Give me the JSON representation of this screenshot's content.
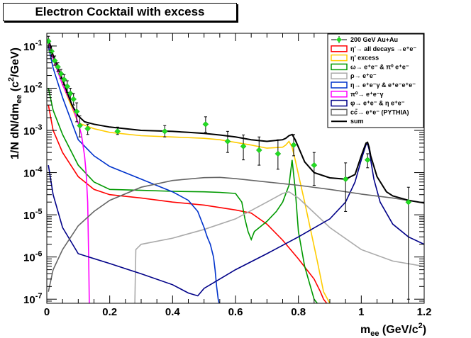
{
  "chart_data": {
    "type": "line",
    "title": "Electron Cocktail with excess",
    "xlabel": "m",
    "xlabel_sub": "ee",
    "xlabel_unit": " (GeV/c",
    "xlabel_sup": "2",
    "xlabel_close": ")",
    "ylabel": "1/N dN/dm",
    "ylabel_sub": "ee",
    "ylabel_unit": " (c",
    "ylabel_sup": "2",
    "ylabel_close": "/GeV)",
    "xlim": [
      0,
      1.2
    ],
    "ylim": [
      8e-08,
      0.2
    ],
    "yscale": "log",
    "xticks": [
      {
        "v": 0,
        "label": "0"
      },
      {
        "v": 0.2,
        "label": "0.2"
      },
      {
        "v": 0.4,
        "label": "0.4"
      },
      {
        "v": 0.6,
        "label": "0.6"
      },
      {
        "v": 0.8,
        "label": "0.8"
      },
      {
        "v": 1.0,
        "label": "1"
      },
      {
        "v": 1.2,
        "label": "1.2"
      }
    ],
    "yticks": [
      {
        "v": 1e-07,
        "base": "10",
        "exp": "-7"
      },
      {
        "v": 1e-06,
        "base": "10",
        "exp": "-6"
      },
      {
        "v": 1e-05,
        "base": "10",
        "exp": "-5"
      },
      {
        "v": 0.0001,
        "base": "10",
        "exp": "-4"
      },
      {
        "v": 0.001,
        "base": "10",
        "exp": "-3"
      },
      {
        "v": 0.01,
        "base": "10",
        "exp": "-2"
      },
      {
        "v": 0.1,
        "base": "10",
        "exp": "-1"
      }
    ],
    "legend_position": "top-right",
    "data_points": {
      "name": "200 GeV Au+Au",
      "color": "#22dd22",
      "points": [
        {
          "x": 0.005,
          "y": 0.13,
          "lo": 0.09,
          "hi": 0.17
        },
        {
          "x": 0.015,
          "y": 0.075,
          "lo": 0.055,
          "hi": 0.1
        },
        {
          "x": 0.025,
          "y": 0.045,
          "lo": 0.035,
          "hi": 0.058
        },
        {
          "x": 0.035,
          "y": 0.032,
          "lo": 0.025,
          "hi": 0.04
        },
        {
          "x": 0.045,
          "y": 0.022,
          "lo": 0.017,
          "hi": 0.028
        },
        {
          "x": 0.055,
          "y": 0.016,
          "lo": 0.012,
          "hi": 0.021
        },
        {
          "x": 0.065,
          "y": 0.011,
          "lo": 0.008,
          "hi": 0.015
        },
        {
          "x": 0.075,
          "y": 0.0075,
          "lo": 0.0055,
          "hi": 0.01
        },
        {
          "x": 0.085,
          "y": 0.0055,
          "lo": 0.004,
          "hi": 0.0075
        },
        {
          "x": 0.095,
          "y": 0.0028,
          "lo": 0.0016,
          "hi": 0.0045
        },
        {
          "x": 0.105,
          "y": 0.0013,
          "lo": 0.0007,
          "hi": 0.0022
        },
        {
          "x": 0.13,
          "y": 0.0011,
          "lo": 0.0008,
          "hi": 0.0014
        },
        {
          "x": 0.225,
          "y": 0.00095,
          "lo": 0.0008,
          "hi": 0.0012
        },
        {
          "x": 0.375,
          "y": 0.00095,
          "lo": 0.0007,
          "hi": 0.0013
        },
        {
          "x": 0.505,
          "y": 0.0014,
          "lo": 0.0009,
          "hi": 0.0021
        },
        {
          "x": 0.575,
          "y": 0.00055,
          "lo": 0.0003,
          "hi": 0.00095
        },
        {
          "x": 0.625,
          "y": 0.00042,
          "lo": 0.0002,
          "hi": 0.00078
        },
        {
          "x": 0.675,
          "y": 0.00034,
          "lo": 0.00015,
          "hi": 0.0007
        },
        {
          "x": 0.735,
          "y": 0.00028,
          "lo": 0.00012,
          "hi": 0.0006
        },
        {
          "x": 0.785,
          "y": 0.00045,
          "lo": 0.00025,
          "hi": 0.0008
        },
        {
          "x": 0.85,
          "y": 0.00015,
          "lo": 5e-05,
          "hi": 0.0003
        },
        {
          "x": 0.95,
          "y": 7e-05,
          "lo": 1.2e-05,
          "hi": 0.00017
        },
        {
          "x": 1.02,
          "y": 0.0002,
          "lo": 0.00013,
          "hi": 0.00028
        },
        {
          "x": 1.15,
          "y": 2e-05,
          "lo": 1e-07,
          "hi": 4.5e-05
        }
      ]
    },
    "series": [
      {
        "key": "etaprime_all",
        "name": "η'→ all decays →e⁺e⁻",
        "color": "#ff0000",
        "x": [
          0.005,
          0.02,
          0.05,
          0.1,
          0.15,
          0.2,
          0.3,
          0.4,
          0.5,
          0.6,
          0.65,
          0.7,
          0.75,
          0.8,
          0.85,
          0.87,
          0.88,
          0.89
        ],
        "y": [
          0.004,
          0.001,
          0.0003,
          8e-05,
          4e-05,
          3e-05,
          2.5e-05,
          2e-05,
          1.7e-05,
          1.3e-05,
          1.1e-05,
          6e-06,
          2.5e-06,
          9e-07,
          3e-07,
          1.5e-07,
          1e-07,
          8e-08
        ]
      },
      {
        "key": "etaprime_excess",
        "name": "η' excess",
        "color": "#ffcc00",
        "x": [
          0.005,
          0.02,
          0.04,
          0.06,
          0.1,
          0.15,
          0.2,
          0.3,
          0.4,
          0.5,
          0.55,
          0.6,
          0.65,
          0.7,
          0.75,
          0.76,
          0.77,
          0.78,
          0.79,
          0.8,
          0.82,
          0.84,
          0.86,
          0.88,
          0.9
        ],
        "y": [
          0.12,
          0.05,
          0.02,
          0.008,
          0.0015,
          0.0011,
          0.0009,
          0.00075,
          0.0007,
          0.00065,
          0.0006,
          0.00052,
          0.00045,
          0.00038,
          0.0004,
          0.00045,
          0.00055,
          0.0004,
          0.0002,
          9e-05,
          2e-05,
          4e-06,
          8e-07,
          1.5e-07,
          8e-08
        ]
      },
      {
        "key": "omega",
        "name": "ω→ e⁺e⁻ & π⁰ e⁺e⁻",
        "color": "#009900",
        "x": [
          0.005,
          0.02,
          0.05,
          0.1,
          0.15,
          0.2,
          0.3,
          0.4,
          0.5,
          0.55,
          0.6,
          0.62,
          0.63,
          0.64,
          0.65,
          0.66,
          0.7,
          0.73,
          0.75,
          0.77,
          0.78,
          0.79,
          0.8,
          0.82,
          0.85,
          0.86
        ],
        "y": [
          0.01,
          0.003,
          0.0008,
          0.00015,
          6e-05,
          4e-05,
          3.8e-05,
          3.6e-05,
          3.5e-05,
          3.4e-05,
          3.2e-05,
          2e-05,
          8e-06,
          4e-06,
          2.6e-06,
          4e-06,
          7e-06,
          1.2e-05,
          2e-05,
          5e-05,
          0.0002,
          4e-05,
          4e-06,
          6e-07,
          1e-07,
          8e-08
        ]
      },
      {
        "key": "rho",
        "name": "ρ→ e⁺e⁻",
        "color": "#aaaaaa",
        "x": [
          0.28,
          0.283,
          0.3,
          0.4,
          0.5,
          0.6,
          0.7,
          0.75,
          0.77,
          0.8,
          0.9,
          1.0,
          1.1,
          1.2
        ],
        "y": [
          8e-08,
          1.5e-06,
          2e-06,
          2.8e-06,
          4.5e-06,
          8e-06,
          2e-05,
          3.2e-05,
          3.5e-05,
          2.5e-05,
          5e-06,
          1.5e-06,
          8e-07,
          6e-07
        ]
      },
      {
        "key": "eta",
        "name": "η→ e⁺e⁻γ & e⁺e⁻e⁺e⁻",
        "color": "#0033cc",
        "x": [
          0.005,
          0.02,
          0.05,
          0.08,
          0.1,
          0.15,
          0.2,
          0.3,
          0.4,
          0.45,
          0.48,
          0.5,
          0.51,
          0.52,
          0.53,
          0.535,
          0.54,
          0.545,
          0.548
        ],
        "y": [
          0.1,
          0.03,
          0.006,
          0.0015,
          0.0006,
          0.00025,
          0.00014,
          7e-05,
          3.5e-05,
          2.2e-05,
          1.2e-05,
          5e-06,
          3e-06,
          2e-06,
          1e-06,
          5e-07,
          2e-07,
          1e-07,
          8e-08
        ]
      },
      {
        "key": "pi0",
        "name": "π⁰→ e⁺e⁻γ",
        "color": "#ff00ff",
        "x": [
          0.005,
          0.02,
          0.05,
          0.08,
          0.1,
          0.11,
          0.12,
          0.125,
          0.13,
          0.133,
          0.135
        ],
        "y": [
          0.13,
          0.05,
          0.012,
          0.004,
          0.0015,
          0.0008,
          0.00025,
          0.0001,
          2e-05,
          1e-06,
          8e-08
        ]
      },
      {
        "key": "phi",
        "name": "φ→ e⁺e⁻ & η e⁺e⁻",
        "color": "#000088",
        "x": [
          0.005,
          0.02,
          0.05,
          0.1,
          0.2,
          0.3,
          0.4,
          0.45,
          0.48,
          0.5,
          0.55,
          0.6,
          0.7,
          0.8,
          0.9,
          0.95,
          0.98,
          1.0,
          1.01,
          1.015,
          1.02,
          1.025,
          1.03,
          1.04,
          1.06,
          1.1,
          1.15,
          1.2
        ],
        "y": [
          0.00015,
          3e-05,
          5e-06,
          1.2e-06,
          7e-07,
          4e-07,
          2.2e-07,
          1.4e-07,
          1.2e-07,
          1.8e-07,
          3e-07,
          5e-07,
          1.2e-06,
          3e-06,
          8e-06,
          2e-05,
          6e-05,
          0.0002,
          0.00035,
          0.00046,
          0.00048,
          0.00035,
          0.0002,
          7e-05,
          2e-05,
          6e-06,
          3e-06,
          2e-06
        ]
      },
      {
        "key": "ccbar",
        "name": "cc̄→ e⁺e⁻ (PYTHIA)",
        "color": "#666666",
        "x": [
          0.005,
          0.02,
          0.05,
          0.1,
          0.15,
          0.2,
          0.3,
          0.4,
          0.5,
          0.55,
          0.6,
          0.7,
          0.8,
          0.9,
          1.0,
          1.1,
          1.2
        ],
        "y": [
          1.5e-07,
          5e-07,
          1.5e-06,
          5.5e-06,
          1.2e-05,
          2.2e-05,
          4.5e-05,
          6.5e-05,
          7.6e-05,
          7.7e-05,
          7.2e-05,
          6e-05,
          5e-05,
          4e-05,
          3.1e-05,
          2.5e-05,
          1.9e-05
        ]
      },
      {
        "key": "sum",
        "name": "sum",
        "color": "#000000",
        "x": [
          0.005,
          0.02,
          0.04,
          0.06,
          0.08,
          0.1,
          0.12,
          0.15,
          0.2,
          0.3,
          0.4,
          0.45,
          0.5,
          0.55,
          0.6,
          0.65,
          0.7,
          0.75,
          0.76,
          0.77,
          0.78,
          0.79,
          0.8,
          0.82,
          0.85,
          0.9,
          0.95,
          0.98,
          1.0,
          1.01,
          1.015,
          1.02,
          1.025,
          1.03,
          1.05,
          1.08,
          1.1,
          1.15,
          1.2
        ],
        "y": [
          0.15,
          0.06,
          0.025,
          0.01,
          0.004,
          0.0022,
          0.0016,
          0.0014,
          0.0012,
          0.001,
          0.00095,
          0.0009,
          0.00085,
          0.00078,
          0.0007,
          0.0006,
          0.00055,
          0.0006,
          0.00065,
          0.00075,
          0.0008,
          0.0006,
          0.0004,
          0.00018,
          0.0001,
          7.5e-05,
          7e-05,
          9e-05,
          0.00025,
          0.0004,
          0.0005,
          0.00052,
          0.0004,
          0.00025,
          8e-05,
          3.5e-05,
          2.8e-05,
          2.2e-05,
          1.9e-05
        ]
      }
    ]
  }
}
